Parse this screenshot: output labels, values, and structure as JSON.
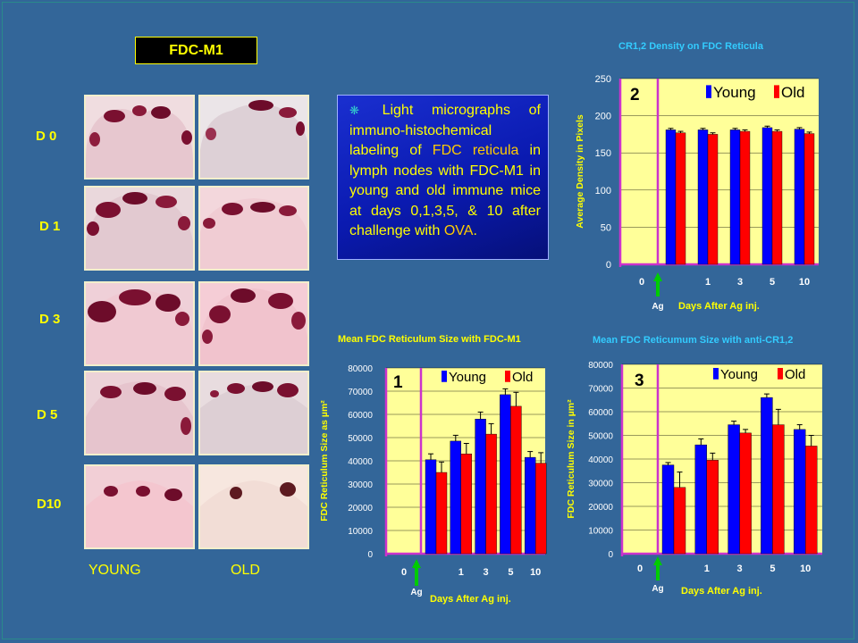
{
  "panel_title": "FDC-M1",
  "row_labels": [
    "D 0",
    "D 1",
    "D 3",
    "D 5",
    "D10"
  ],
  "col_labels": {
    "young": "YOUNG",
    "old": "OLD"
  },
  "colors": {
    "background": "#336699",
    "young": "#0000ff",
    "old": "#ff0000",
    "plot_bg": "#ffff99",
    "divider": "#cc33cc",
    "arrow": "#00cc00"
  },
  "info": {
    "bullet": "❋",
    "p1": " Light micrographs of immuno-histochemical labeling of ",
    "p2": "FDC reticula",
    "p3": " in lymph nodes with  FDC-M1 in young and old immune mice at days 0,1,3,5, & 10 after challenge with ",
    "p4": "OVA",
    "p5": "."
  },
  "chart_data": [
    {
      "type": "bar",
      "panel_number": "2",
      "title": "CR1,2 Density on FDC Reticula",
      "ylabel": "Average Density in Pixels",
      "xlabel": "Days After Ag inj.",
      "arrow_label": "Ag",
      "categories": [
        "0",
        "1",
        "3",
        "5",
        "10"
      ],
      "ylim": [
        0,
        250
      ],
      "yticks": [
        0,
        50,
        100,
        150,
        200,
        250
      ],
      "series": [
        {
          "name": "Young",
          "values": [
            181,
            181,
            181,
            184,
            182
          ],
          "errors": [
            2,
            2,
            2,
            2,
            2
          ]
        },
        {
          "name": "Old",
          "values": [
            177,
            175,
            179,
            179,
            176
          ],
          "errors": [
            2,
            2,
            2,
            2,
            2
          ]
        }
      ]
    },
    {
      "type": "bar",
      "panel_number": "1",
      "title": "Mean FDC Reticulum Size with FDC-M1",
      "ylabel": "FDC Reticulum Size as µm²",
      "xlabel": "Days After Ag inj.",
      "arrow_label": "Ag",
      "categories": [
        "0",
        "1",
        "3",
        "5",
        "10"
      ],
      "ylim": [
        0,
        80000
      ],
      "yticks": [
        0,
        10000,
        20000,
        30000,
        40000,
        50000,
        60000,
        70000,
        80000
      ],
      "series": [
        {
          "name": "Young",
          "values": [
            40500,
            48500,
            58000,
            68500,
            41500
          ],
          "errors": [
            2500,
            2500,
            3000,
            2500,
            2500
          ]
        },
        {
          "name": "Old",
          "values": [
            35000,
            43000,
            51500,
            63500,
            39000
          ],
          "errors": [
            4500,
            4500,
            4500,
            6000,
            4500
          ]
        }
      ]
    },
    {
      "type": "bar",
      "panel_number": "3",
      "title": "Mean FDC Reticumum Size with anti-CR1,2",
      "ylabel": "FDC Reticulum Size in µm²",
      "xlabel": "Days After Ag inj.",
      "arrow_label": "Ag",
      "categories": [
        "0",
        "1",
        "3",
        "5",
        "10"
      ],
      "ylim": [
        0,
        80000
      ],
      "yticks": [
        0,
        10000,
        20000,
        30000,
        40000,
        50000,
        60000,
        70000,
        80000
      ],
      "series": [
        {
          "name": "Young",
          "values": [
            37500,
            46000,
            54500,
            66000,
            52500
          ],
          "errors": [
            1000,
            2500,
            1500,
            1500,
            2000
          ]
        },
        {
          "name": "Old",
          "values": [
            28000,
            39500,
            51000,
            54500,
            45500
          ],
          "errors": [
            6500,
            3000,
            1500,
            6500,
            4500
          ]
        }
      ]
    }
  ]
}
